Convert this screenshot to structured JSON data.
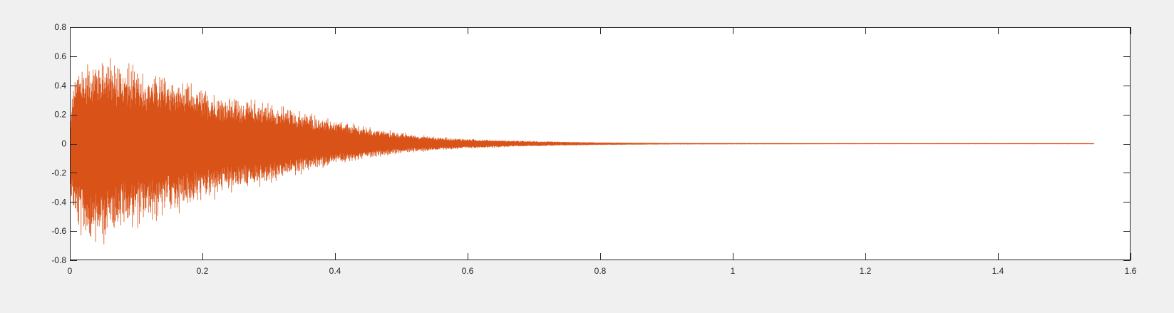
{
  "chart_data": {
    "type": "line",
    "title": "",
    "xlabel": "",
    "ylabel": "",
    "xlim": [
      0,
      1.6
    ],
    "ylim": [
      -0.8,
      0.8
    ],
    "xticks": [
      0,
      0.2,
      0.4,
      0.6,
      0.8,
      1,
      1.2,
      1.4,
      1.6
    ],
    "yticks": [
      -0.8,
      -0.6,
      -0.4,
      -0.2,
      0,
      0.2,
      0.4,
      0.6,
      0.8
    ],
    "xtick_labels": [
      "0",
      "0.2",
      "0.4",
      "0.6",
      "0.8",
      "1",
      "1.2",
      "1.4",
      "1.6"
    ],
    "ytick_labels": [
      "-0.8",
      "-0.6",
      "-0.4",
      "-0.2",
      "0",
      "0.2",
      "0.4",
      "0.6",
      "0.8"
    ],
    "grid": false,
    "legend": "none",
    "series": [
      {
        "color": "#d95319",
        "x_range": [
          0,
          1.545
        ],
        "envelope": {
          "x": [
            0,
            0.005,
            0.01,
            0.02,
            0.03,
            0.05,
            0.07,
            0.1,
            0.15,
            0.2,
            0.25,
            0.3,
            0.35,
            0.4,
            0.45,
            0.5,
            0.55,
            0.6,
            0.65,
            0.7,
            0.8,
            0.9,
            1.0,
            1.2,
            1.4,
            1.545
          ],
          "upper": [
            0.1,
            0.45,
            0.55,
            0.6,
            0.6,
            0.67,
            0.6,
            0.55,
            0.5,
            0.4,
            0.34,
            0.3,
            0.24,
            0.17,
            0.12,
            0.08,
            0.05,
            0.035,
            0.025,
            0.018,
            0.008,
            0.004,
            0.003,
            0.002,
            0.002,
            0.002
          ],
          "lower": [
            -0.3,
            -0.55,
            -0.62,
            -0.68,
            -0.72,
            -0.75,
            -0.62,
            -0.6,
            -0.52,
            -0.42,
            -0.35,
            -0.3,
            -0.22,
            -0.16,
            -0.11,
            -0.07,
            -0.05,
            -0.035,
            -0.025,
            -0.018,
            -0.008,
            -0.004,
            -0.003,
            -0.002,
            -0.002,
            -0.002
          ]
        }
      }
    ]
  }
}
